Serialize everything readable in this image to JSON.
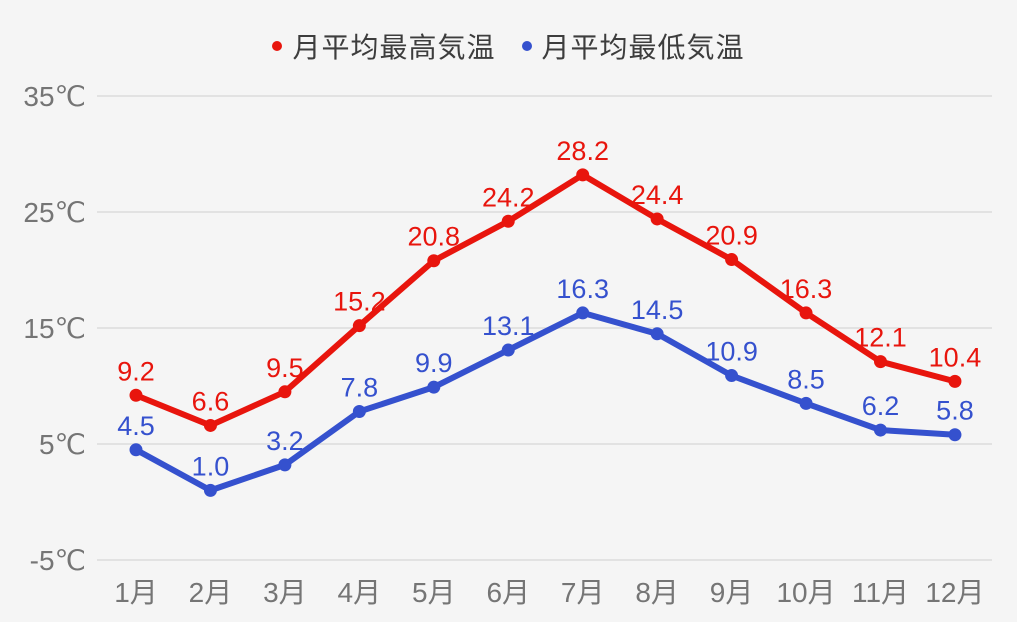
{
  "chart_data": {
    "type": "line",
    "title": "",
    "categories": [
      "1月",
      "2月",
      "3月",
      "4月",
      "5月",
      "6月",
      "7月",
      "8月",
      "9月",
      "10月",
      "11月",
      "12月"
    ],
    "series": [
      {
        "name": "月平均最高気温",
        "color": "#e8150d",
        "values": [
          9.2,
          6.6,
          9.5,
          15.2,
          20.8,
          24.2,
          28.2,
          24.4,
          20.9,
          16.3,
          12.1,
          10.4
        ]
      },
      {
        "name": "月平均最低気温",
        "color": "#3551ce",
        "values": [
          4.5,
          1.0,
          3.2,
          7.8,
          9.9,
          13.1,
          16.3,
          14.5,
          10.9,
          8.5,
          6.2,
          5.8
        ]
      }
    ],
    "xlabel": "",
    "ylabel": "",
    "y_ticks": [
      "35℃",
      "25℃",
      "15℃",
      "5℃",
      "-5℃"
    ],
    "y_tick_values": [
      35,
      25,
      15,
      5,
      -5
    ],
    "ylim": [
      -5,
      35
    ],
    "grid": "horizontal-only",
    "legend_position": "top-center",
    "marker": "circle",
    "data_labels": true
  },
  "colors": {
    "background": "#f5f5f5",
    "gridline": "#dcdcdc",
    "axis_text": "#757575",
    "legend_text": "#3d3d3d",
    "series_max": "#e8150d",
    "series_min": "#3551ce"
  }
}
